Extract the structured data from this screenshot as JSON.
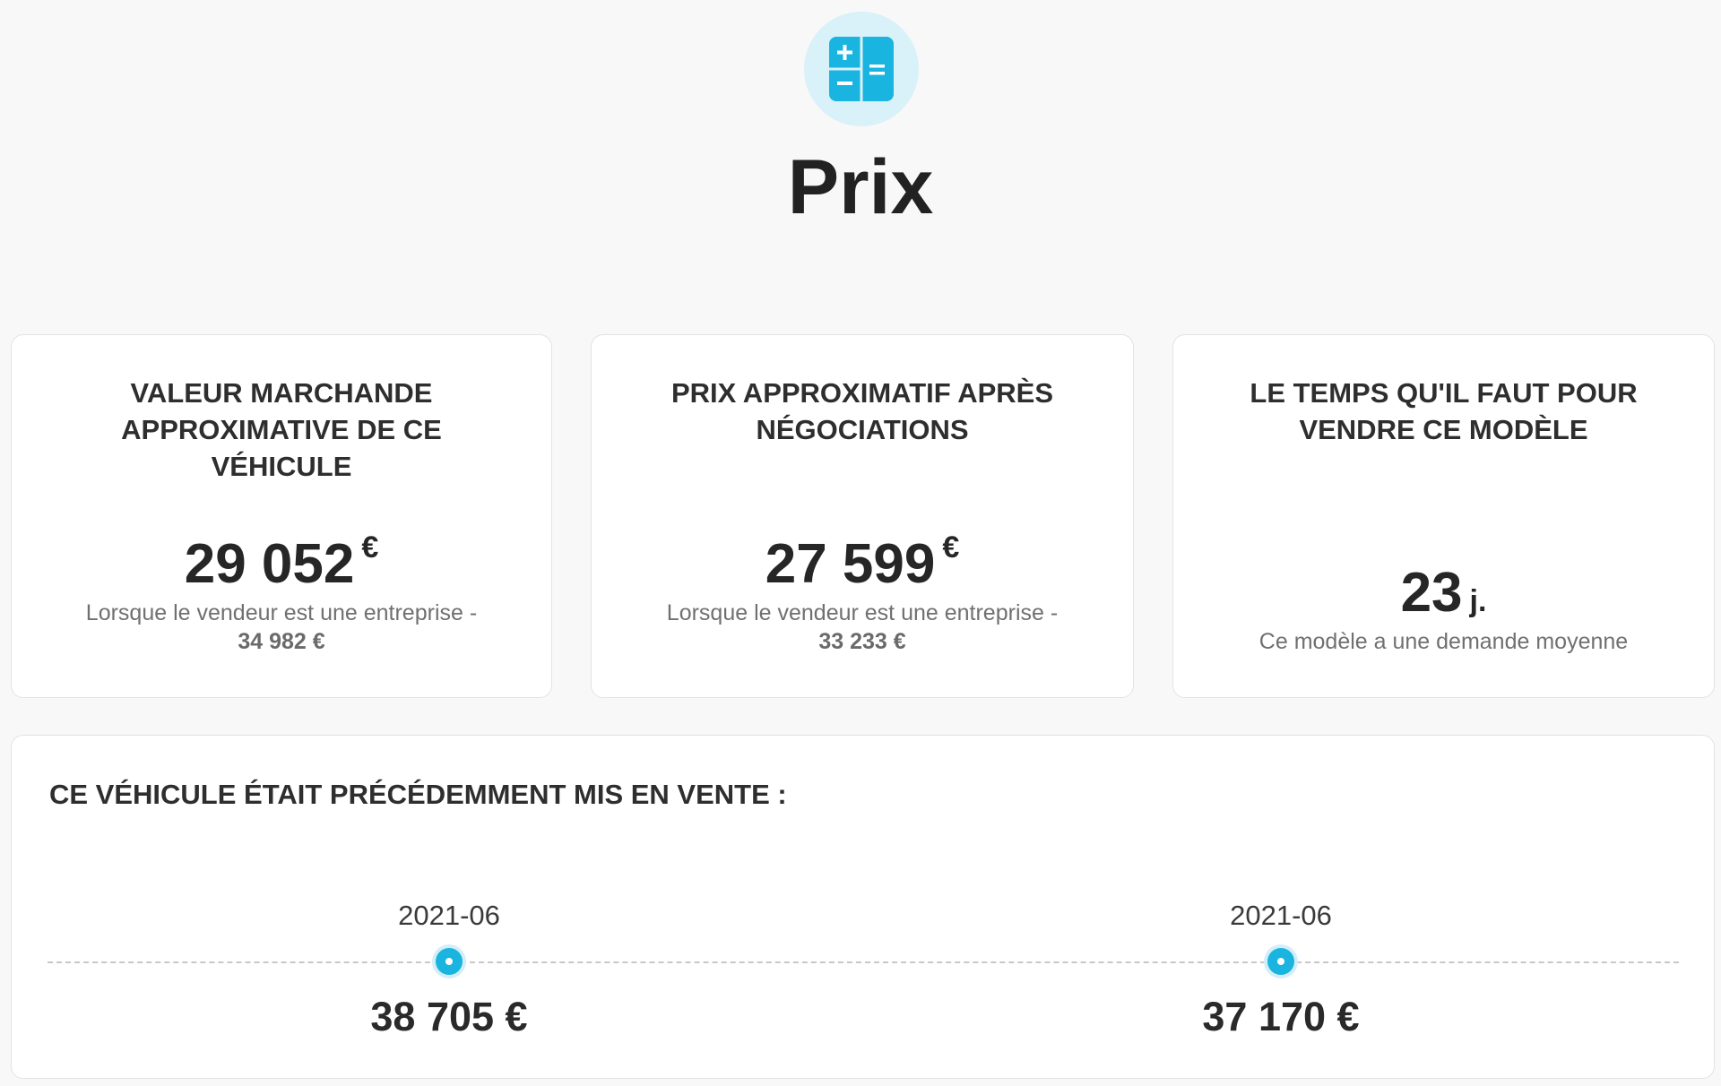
{
  "header": {
    "icon": "calculator-icon",
    "accent_color": "#19b4e0",
    "title": "Prix"
  },
  "cards": [
    {
      "title": "VALEUR MARCHANDE APPROXIMATIVE DE CE VÉHICULE",
      "value": "29 052",
      "unit": "€",
      "note": "Lorsque le vendeur est une entreprise -",
      "note_value": "34 982 €"
    },
    {
      "title": "PRIX APPROXIMATIF APRÈS NÉGOCIATIONS",
      "value": "27 599",
      "unit": "€",
      "note": "Lorsque le vendeur est une entreprise -",
      "note_value": "33 233 €"
    },
    {
      "title": "LE TEMPS QU'IL FAUT POUR VENDRE CE MODÈLE",
      "value": "23",
      "unit": "j.",
      "note": "Ce modèle a une demande moyenne"
    }
  ],
  "history": {
    "title": "CE VÉHICULE ÉTAIT PRÉCÉDEMMENT MIS EN VENTE :",
    "entries": [
      {
        "date": "2021-06",
        "price": "38 705 €"
      },
      {
        "date": "2021-06",
        "price": "37 170 €"
      }
    ]
  }
}
